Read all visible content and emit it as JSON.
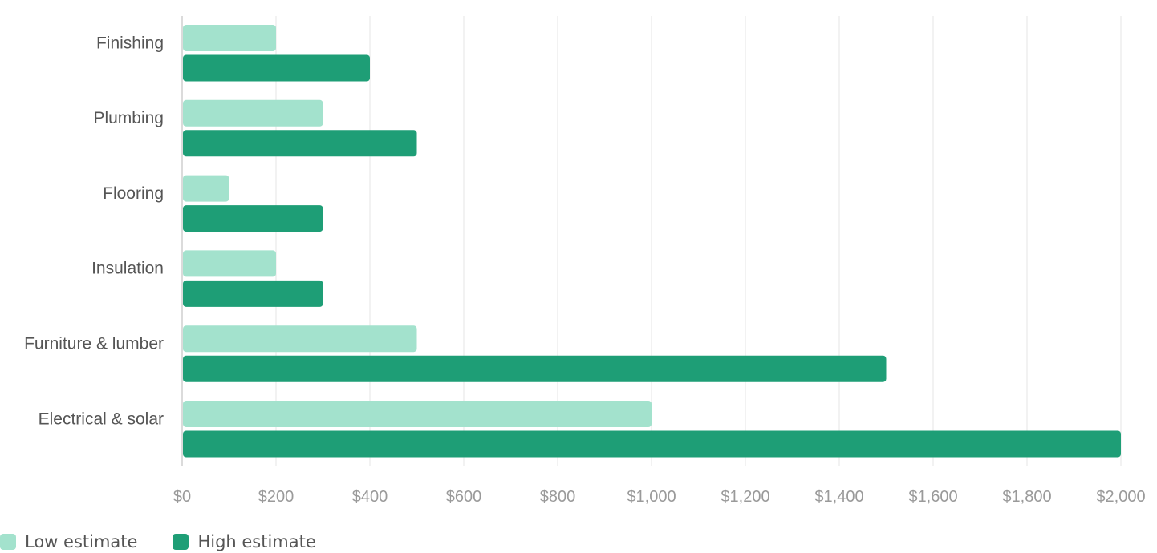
{
  "chart_data": {
    "type": "bar",
    "orientation": "horizontal",
    "categories": [
      "Finishing",
      "Plumbing",
      "Flooring",
      "Insulation",
      "Furniture & lumber",
      "Electrical & solar"
    ],
    "series": [
      {
        "name": "Low estimate",
        "values": [
          200,
          300,
          100,
          200,
          500,
          1000
        ],
        "color": "#a3e2cd"
      },
      {
        "name": "High estimate",
        "values": [
          400,
          500,
          300,
          300,
          1500,
          2000
        ],
        "color": "#1e9e76"
      }
    ],
    "x_ticks": [
      "$0",
      "$200",
      "$400",
      "$600",
      "$800",
      "$1,000",
      "$1,200",
      "$1,400",
      "$1,600",
      "$1,800",
      "$2,000"
    ],
    "xlim": [
      0,
      2000
    ],
    "grid": true,
    "legend_position": "bottom-left",
    "title": "",
    "xlabel": "",
    "ylabel": ""
  }
}
